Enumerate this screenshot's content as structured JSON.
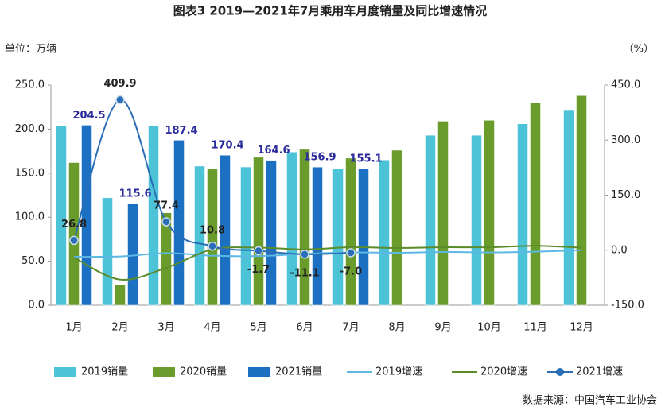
{
  "chart_data": {
    "type": "bar",
    "title": "图表3   2019—2021年7月乘用车月度销量及同比增速情况",
    "y_label": "单位：万辆",
    "y2_label": "（%）",
    "source": "数据来源：中国汽车工业协会",
    "categories": [
      "1月",
      "2月",
      "3月",
      "4月",
      "5月",
      "6月",
      "7月",
      "8月",
      "9月",
      "10月",
      "11月",
      "12月"
    ],
    "ylim": [
      0,
      250
    ],
    "yticks": [
      {
        "value": 0,
        "label": "0.0"
      },
      {
        "value": 50,
        "label": "50.0"
      },
      {
        "value": 100,
        "label": "100.0"
      },
      {
        "value": 150,
        "label": "150.0"
      },
      {
        "value": 200,
        "label": "200.0"
      },
      {
        "value": 250,
        "label": "250.0"
      }
    ],
    "y2lim": [
      -150,
      450
    ],
    "y2ticks": [
      {
        "value": -150,
        "label": "-150.0"
      },
      {
        "value": 0,
        "label": "0.0"
      },
      {
        "value": 150,
        "label": "150.0"
      },
      {
        "value": 300,
        "label": "300.0"
      },
      {
        "value": 450,
        "label": "450.0"
      }
    ],
    "legend": "bottom",
    "series": [
      {
        "name": "2019销量",
        "type": "bar",
        "color": "#4cc3d7",
        "values": [
          204,
          122,
          204,
          158,
          157,
          174,
          155,
          165,
          193,
          193,
          206,
          222
        ]
      },
      {
        "name": "2020销量",
        "type": "bar",
        "color": "#6a9c2c",
        "values": [
          162,
          23,
          105,
          155,
          168,
          177,
          167,
          176,
          209,
          210,
          230,
          238
        ]
      },
      {
        "name": "2021销量",
        "type": "bar",
        "color": "#1b70c2",
        "values": [
          204.5,
          115.6,
          187.4,
          170.4,
          164.6,
          156.9,
          155.1,
          null,
          null,
          null,
          null,
          null
        ],
        "value_labels": [
          "204.5",
          "115.6",
          "187.4",
          "170.4",
          "164.6",
          "156.9",
          "155.1",
          null,
          null,
          null,
          null,
          null
        ]
      },
      {
        "name": "2019增速",
        "type": "line",
        "axis": "y2",
        "color": "#5cb8e2",
        "values": [
          -18,
          -17,
          -8,
          -15,
          -16,
          -10,
          -6,
          -7,
          -5,
          -6,
          -4,
          0
        ]
      },
      {
        "name": "2020增速",
        "type": "line",
        "axis": "y2",
        "color": "#5a8c2a",
        "values": [
          -20,
          -80,
          -48,
          2,
          7,
          2,
          8,
          6,
          8,
          8,
          12,
          7
        ]
      },
      {
        "name": "2021增速",
        "type": "line",
        "axis": "y2",
        "color": "#2b6db6",
        "marker": true,
        "values": [
          26.8,
          409.9,
          77.4,
          10.8,
          -1.7,
          -11.1,
          -7,
          null,
          null,
          null,
          null,
          null
        ],
        "value_labels": [
          "26.8",
          "409.9",
          "77.4",
          "10.8",
          "-1.7",
          "-11.1",
          "-7.0",
          null,
          null,
          null,
          null,
          null
        ]
      }
    ]
  }
}
